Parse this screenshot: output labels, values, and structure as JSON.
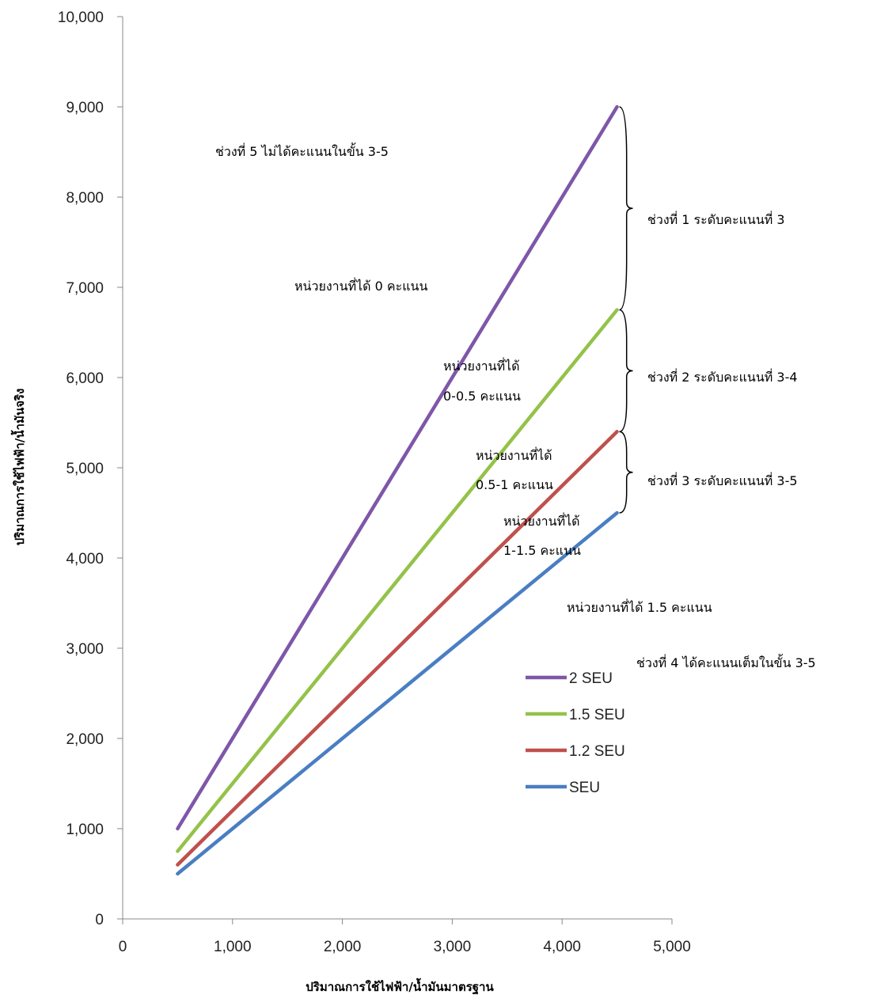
{
  "chart_data": {
    "type": "line",
    "xlabel": "ปริมาณการใช้ไฟฟ้า/น้ำมันมาตรฐาน",
    "ylabel": "ปริมาณการใช้ไฟฟ้า/น้ำมันจริง",
    "xlim": [
      0,
      5000
    ],
    "ylim": [
      0,
      10000
    ],
    "x_ticks": [
      "0",
      "1,000",
      "2,000",
      "3,000",
      "4,000",
      "5,000"
    ],
    "y_ticks": [
      "0",
      "1,000",
      "2,000",
      "3,000",
      "4,000",
      "5,000",
      "6,000",
      "7,000",
      "8,000",
      "9,000",
      "10,000"
    ],
    "grid": false,
    "legend_position": "lower-right",
    "series": [
      {
        "name": "2 SEU",
        "color": "#7E57A8",
        "x": [
          500,
          4500
        ],
        "y": [
          1000,
          9000
        ]
      },
      {
        "name": "1.5 SEU",
        "color": "#94C24A",
        "x": [
          500,
          4500
        ],
        "y": [
          750,
          6750
        ]
      },
      {
        "name": "1.2 SEU",
        "color": "#C0504D",
        "x": [
          500,
          4500
        ],
        "y": [
          600,
          5400
        ]
      },
      {
        "name": "SEU",
        "color": "#4A7EC2",
        "x": [
          500,
          4500
        ],
        "y": [
          500,
          4500
        ]
      }
    ],
    "annotations": [
      {
        "id": "range5",
        "text": "ช่วงที่ 5 ไม่ได้คะแนนในขั้น 3-5"
      },
      {
        "id": "zero",
        "text": "หน่วยงานที่ได้ 0 คะแนน"
      },
      {
        "id": "half_a",
        "text": "หน่วยงานที่ได้"
      },
      {
        "id": "half_b",
        "text": "0-0.5 คะแนน"
      },
      {
        "id": "one_a",
        "text": "หน่วยงานที่ได้"
      },
      {
        "id": "one_b",
        "text": "0.5-1 คะแนน"
      },
      {
        "id": "onehalf_a",
        "text": "หน่วยงานที่ได้"
      },
      {
        "id": "onehalf_b",
        "text": "1-1.5 คะแนน"
      },
      {
        "id": "full",
        "text": "หน่วยงานที่ได้ 1.5 คะแนน"
      },
      {
        "id": "range1",
        "text": "ช่วงที่ 1 ระดับคะแนนที่ 3"
      },
      {
        "id": "range2",
        "text": "ช่วงที่ 2 ระดับคะแนนที่ 3-4"
      },
      {
        "id": "range3",
        "text": "ช่วงที่ 3 ระดับคะแนนที่ 3-5"
      },
      {
        "id": "range4",
        "text": "ช่วงที่ 4 ได้คะแนนเต็มในขั้น 3-5"
      }
    ]
  }
}
